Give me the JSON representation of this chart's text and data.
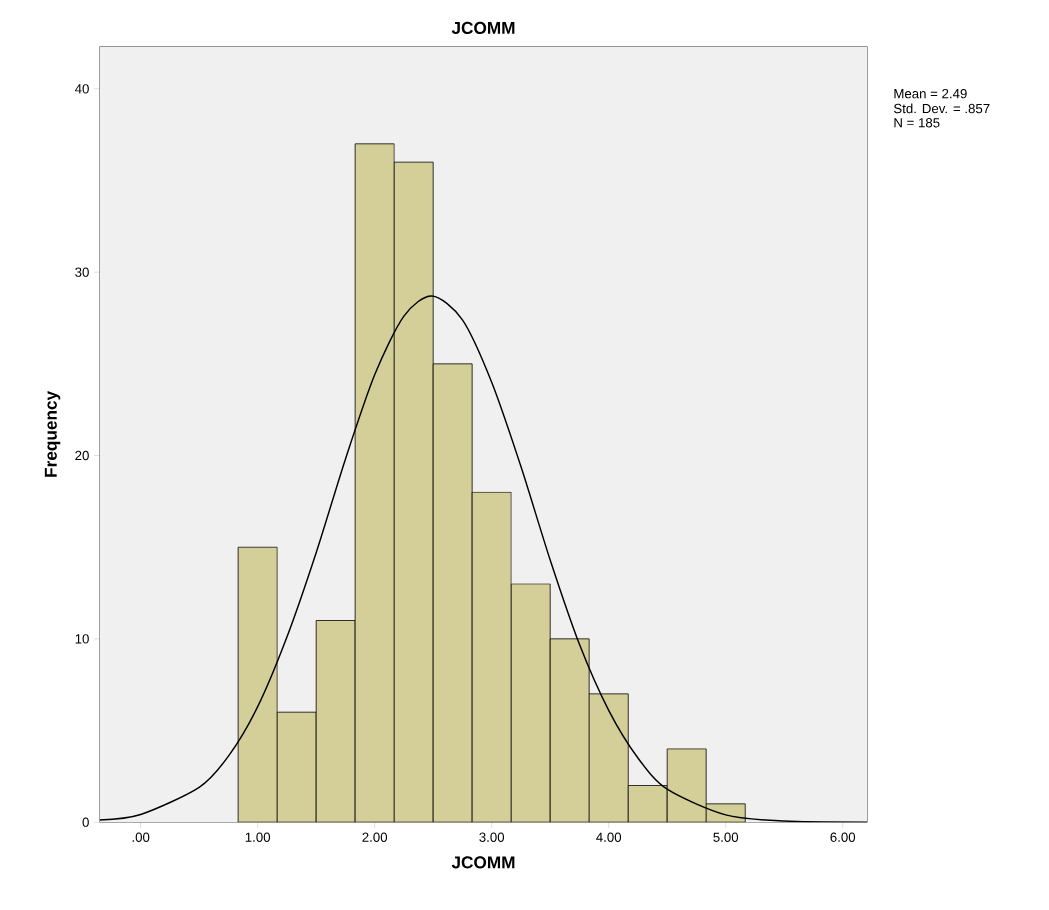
{
  "chart_data": {
    "type": "histogram",
    "title": "JCOMM",
    "xlabel": "JCOMM",
    "ylabel": "Frequency",
    "bins": [
      0.833,
      1.167,
      1.5,
      1.833,
      2.167,
      2.5,
      2.833,
      3.167,
      3.5,
      3.833,
      4.167,
      4.5,
      4.833,
      5.167
    ],
    "values": [
      15,
      6,
      11,
      37,
      36,
      25,
      18,
      13,
      10,
      7,
      2,
      4,
      1
    ],
    "color": "#d4cf98",
    "series": [
      {
        "type": "line",
        "color": "#000000",
        "x": [
          -0.35,
          0,
          0.5,
          0.75,
          1.0,
          1.25,
          1.5,
          1.75,
          2.0,
          2.25,
          2.49,
          2.75,
          3.0,
          3.25,
          3.5,
          3.75,
          4.0,
          4.25,
          4.5,
          5.0,
          5.5,
          6.21
        ],
        "values": [
          0.12,
          0.42,
          1.9,
          3.6,
          6.3,
          10.1,
          14.7,
          19.8,
          24.4,
          27.6,
          28.7,
          27.4,
          24.0,
          19.4,
          14.3,
          9.7,
          6.1,
          3.5,
          1.8,
          0.4,
          0.06,
          0.0
        ]
      }
    ],
    "xlim": [
      -0.35,
      6.21
    ],
    "ylim": [
      0,
      42.3
    ],
    "xticks": [
      {
        "value": 0,
        "label": ".00"
      },
      {
        "value": 1,
        "label": "1.00"
      },
      {
        "value": 2,
        "label": "2.00"
      },
      {
        "value": 3,
        "label": "3.00"
      },
      {
        "value": 4,
        "label": "4.00"
      },
      {
        "value": 5,
        "label": "5.00"
      },
      {
        "value": 6,
        "label": "6.00"
      }
    ],
    "yticks": [
      0,
      10,
      20,
      30,
      40
    ],
    "annotations": [
      "Mean = 2.49",
      "Std. Dev. = .857",
      "N = 185"
    ]
  }
}
